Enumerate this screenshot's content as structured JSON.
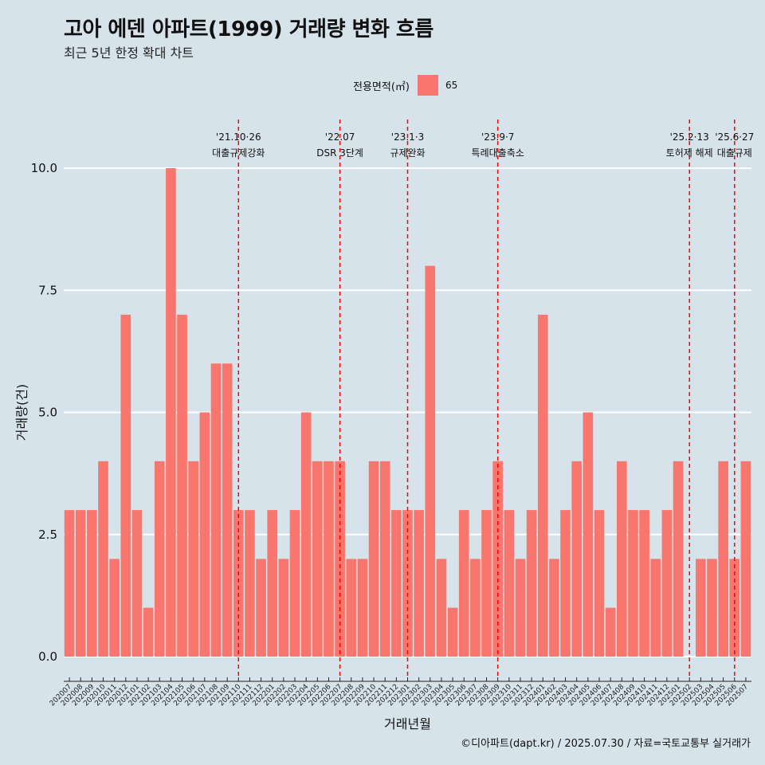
{
  "title": "고아 에덴 아파트(1999) 거래량 변화 흐름",
  "subtitle": "최근 5년 한정 확대 차트",
  "caption": "©디아파트(dapt.kr) / 2025.07.30 / 자료=국토교통부 실거래가",
  "colors": {
    "background": "#d6e3ea",
    "bar": "#f8766d",
    "event_line": "#ff0000",
    "grid": "#ffffff"
  },
  "chart_data": {
    "type": "bar",
    "xlabel": "거래년월",
    "ylabel": "거래량(건)",
    "ylim": [
      0,
      10
    ],
    "yticks": [
      "0.0",
      "2.5",
      "5.0",
      "7.5",
      "10.0"
    ],
    "ytick_values": [
      0,
      2.5,
      5,
      7.5,
      10
    ],
    "grid": true,
    "legend": {
      "title": "전용면적(㎡)",
      "position": "top",
      "entries": [
        "65"
      ]
    },
    "categories": [
      "202007",
      "202008",
      "202009",
      "202010",
      "202011",
      "202012",
      "202101",
      "202102",
      "202103",
      "202104",
      "202105",
      "202106",
      "202107",
      "202108",
      "202109",
      "202110",
      "202111",
      "202112",
      "202201",
      "202202",
      "202203",
      "202204",
      "202205",
      "202206",
      "202207",
      "202208",
      "202209",
      "202210",
      "202211",
      "202212",
      "202301",
      "202302",
      "202303",
      "202304",
      "202305",
      "202306",
      "202307",
      "202308",
      "202309",
      "202310",
      "202311",
      "202312",
      "202401",
      "202402",
      "202403",
      "202404",
      "202405",
      "202406",
      "202407",
      "202408",
      "202409",
      "202410",
      "202411",
      "202412",
      "202501",
      "202502",
      "202503",
      "202504",
      "202505",
      "202506",
      "202507"
    ],
    "series": [
      {
        "name": "65",
        "values": [
          3,
          3,
          3,
          4,
          2,
          7,
          3,
          1,
          4,
          10,
          7,
          4,
          5,
          6,
          6,
          3,
          3,
          2,
          3,
          2,
          3,
          5,
          4,
          4,
          4,
          2,
          2,
          4,
          4,
          3,
          3,
          3,
          8,
          2,
          1,
          3,
          2,
          3,
          4,
          3,
          2,
          3,
          7,
          2,
          3,
          4,
          5,
          3,
          1,
          4,
          3,
          3,
          2,
          3,
          4,
          0,
          2,
          2,
          4,
          2,
          4
        ]
      }
    ],
    "events": [
      {
        "date": "202110",
        "label1": "'21.10·26",
        "label2": "대출규제강화"
      },
      {
        "date": "202207",
        "label1": "'22.07",
        "label2": "DSR 3단계"
      },
      {
        "date": "202301",
        "label1": "'23.1·3",
        "label2": "규제완화"
      },
      {
        "date": "202309",
        "label1": "'23.9·7",
        "label2": "특례대출축소"
      },
      {
        "date": "202502",
        "label1": "'25.2·13",
        "label2": "토허제 해제"
      },
      {
        "date": "202506",
        "label1": "'25.6·27",
        "label2": "대출규제"
      }
    ]
  }
}
